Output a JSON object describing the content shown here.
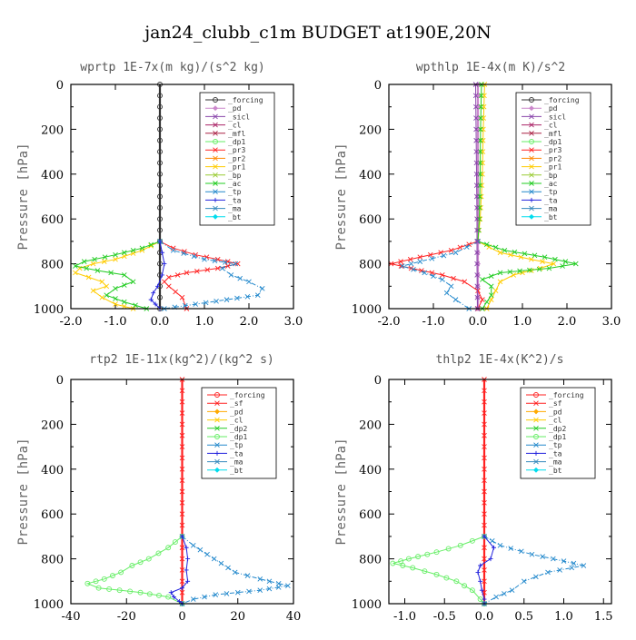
{
  "title": "jan24_clubb_c1m  BUDGET at190E,20N",
  "chart_data": [
    {
      "type": "line",
      "title": "wprtp  1E-7x(m kg)/(s^2 kg)",
      "ylabel": "Pressure [hPa]",
      "xlim": [
        -2.0,
        3.0
      ],
      "ylim": [
        1000,
        0
      ],
      "x_ticks": [
        "-2.0",
        "-1.0",
        "0.0",
        "1.0",
        "2.0",
        "3.0"
      ],
      "x_tick_values": [
        -2,
        -1,
        0,
        1,
        2,
        3
      ],
      "y_ticks": [
        "0",
        "200",
        "400",
        "600",
        "800",
        "1000"
      ],
      "legend": [
        "_forcing",
        "_pd",
        "_sicl",
        "_cl",
        "_mfl",
        "_dp1",
        "_pr3",
        "_pr2",
        "_pr1",
        "_bp",
        "_ac",
        "_tp",
        "_ta",
        "_ma",
        "_bt"
      ],
      "series": [
        {
          "name": "_forcing",
          "color": "#333333",
          "marker": "circle",
          "p": [
            0,
            100,
            200,
            300,
            400,
            500,
            600,
            700,
            800,
            900,
            1000
          ],
          "x": [
            0,
            0,
            0,
            0,
            0,
            0,
            0,
            0,
            0,
            0,
            0
          ]
        },
        {
          "name": "_pr3",
          "color": "#ff2222",
          "marker": "x",
          "p": [
            700,
            730,
            760,
            780,
            800,
            820,
            840,
            860,
            880,
            900,
            950,
            1000
          ],
          "x": [
            0,
            0.3,
            0.8,
            1.3,
            1.75,
            1.3,
            0.6,
            0.2,
            0.1,
            0.2,
            0.5,
            0.6
          ]
        },
        {
          "name": "_pr1",
          "color": "#ffcc00",
          "marker": "x",
          "p": [
            700,
            740,
            780,
            800,
            820,
            840,
            860,
            880,
            900,
            920,
            950,
            980,
            1000
          ],
          "x": [
            0,
            -0.4,
            -1.0,
            -1.5,
            -1.8,
            -1.9,
            -1.6,
            -1.3,
            -1.2,
            -1.5,
            -1.3,
            -1.0,
            -0.6
          ]
        },
        {
          "name": "_ac",
          "color": "#22cc22",
          "marker": "x",
          "p": [
            700,
            730,
            760,
            790,
            810,
            830,
            850,
            880,
            910,
            940,
            970,
            1000
          ],
          "x": [
            0,
            -0.4,
            -1.0,
            -1.7,
            -1.9,
            -1.4,
            -0.8,
            -0.6,
            -1.0,
            -1.2,
            -0.8,
            -0.3
          ]
        },
        {
          "name": "_tp",
          "color": "#2288cc",
          "marker": "x",
          "p": [
            700,
            740,
            780,
            800,
            820,
            850,
            880,
            910,
            940,
            960,
            980,
            1000
          ],
          "x": [
            0,
            0.3,
            1.0,
            1.7,
            1.4,
            1.6,
            2.0,
            2.3,
            2.2,
            1.5,
            0.8,
            0.1
          ]
        },
        {
          "name": "_ta",
          "color": "#2222dd",
          "marker": "plus",
          "p": [
            700,
            800,
            850,
            900,
            930,
            960,
            980,
            1000
          ],
          "x": [
            0,
            0.1,
            0.05,
            -0.05,
            -0.15,
            -0.2,
            -0.1,
            0
          ]
        }
      ]
    },
    {
      "type": "line",
      "title": "wpthlp  1E-4x(m K)/s^2",
      "ylabel": "Pressure [hPa]",
      "xlim": [
        -2.0,
        3.0
      ],
      "ylim": [
        1000,
        0
      ],
      "x_ticks": [
        "-2.0",
        "-1.0",
        "0.0",
        "1.0",
        "2.0",
        "3.0"
      ],
      "x_tick_values": [
        -2,
        -1,
        0,
        1,
        2,
        3
      ],
      "y_ticks": [
        "0",
        "200",
        "400",
        "600",
        "800",
        "1000"
      ],
      "legend": [
        "_forcing",
        "_pd",
        "_sicl",
        "_cl",
        "_mfl",
        "_dp1",
        "_pr3",
        "_pr2",
        "_pr1",
        "_bp",
        "_ac",
        "_tp",
        "_ta",
        "_ma",
        "_bt"
      ],
      "series": [
        {
          "name": "_pd",
          "color": "#cc88cc",
          "marker": "diamond",
          "p": [
            0,
            100,
            200,
            300,
            400,
            500,
            600,
            700,
            800,
            900,
            1000
          ],
          "x": [
            0,
            0,
            0,
            0,
            0,
            0,
            0,
            0,
            0,
            0,
            0
          ]
        },
        {
          "name": "_pr1",
          "color": "#ffcc00",
          "marker": "x",
          "p": [
            0,
            200,
            400,
            600,
            700,
            750,
            780,
            800,
            820,
            850,
            880,
            920,
            960,
            1000
          ],
          "x": [
            0.15,
            0.12,
            0.1,
            0.05,
            0,
            0.5,
            1.2,
            1.7,
            1.4,
            0.8,
            0.5,
            0.4,
            0.3,
            0.2
          ]
        },
        {
          "name": "_ac",
          "color": "#22cc22",
          "marker": "x",
          "p": [
            0,
            200,
            400,
            600,
            700,
            740,
            770,
            800,
            820,
            840,
            870,
            900,
            940,
            970,
            1000
          ],
          "x": [
            0.08,
            0.06,
            0.05,
            0.03,
            0,
            0.6,
            1.5,
            2.2,
            1.6,
            0.5,
            0.1,
            0.3,
            0.3,
            0.2,
            0.1
          ]
        },
        {
          "name": "_pr3",
          "color": "#ff2222",
          "marker": "x",
          "p": [
            700,
            740,
            770,
            800,
            820,
            850,
            880,
            920,
            960,
            1000
          ],
          "x": [
            0,
            -0.6,
            -1.3,
            -1.95,
            -1.5,
            -0.8,
            -0.3,
            0,
            0.1,
            0
          ]
        },
        {
          "name": "_tp",
          "color": "#2288cc",
          "marker": "x",
          "p": [
            700,
            750,
            790,
            810,
            840,
            870,
            900,
            930,
            960,
            1000
          ],
          "x": [
            0,
            -0.5,
            -1.3,
            -1.7,
            -1.2,
            -0.8,
            -0.6,
            -0.7,
            -0.5,
            -0.2
          ]
        },
        {
          "name": "_sicl",
          "color": "#8844aa",
          "marker": "x",
          "p": [
            0,
            200,
            400,
            600,
            800,
            1000
          ],
          "x": [
            -0.05,
            -0.04,
            -0.03,
            -0.02,
            -0.02,
            -0.01
          ]
        }
      ]
    },
    {
      "type": "line",
      "title": "rtp2  1E-11x(kg^2)/(kg^2 s)",
      "ylabel": "Pressure [hPa]",
      "xlim": [
        -40,
        40
      ],
      "ylim": [
        1000,
        0
      ],
      "x_ticks": [
        "-40",
        "-20",
        "0",
        "20",
        "40"
      ],
      "x_tick_values": [
        -40,
        -20,
        0,
        20,
        40
      ],
      "y_ticks": [
        "0",
        "200",
        "400",
        "600",
        "800",
        "1000"
      ],
      "legend": [
        "_forcing",
        "_sf",
        "_pd",
        "_cl",
        "_dp2",
        "_dp1",
        "_tp",
        "_ta",
        "_ma",
        "_bt"
      ],
      "series": [
        {
          "name": "_forcing",
          "color": "#ff2222",
          "marker": "x",
          "p": [
            0,
            100,
            200,
            300,
            400,
            500,
            600,
            700,
            800,
            900,
            1000
          ],
          "x": [
            0,
            0,
            0,
            0,
            0,
            0,
            0,
            0,
            0,
            0,
            0
          ]
        },
        {
          "name": "_dp1",
          "color": "#66ee66",
          "marker": "circle",
          "p": [
            700,
            750,
            800,
            830,
            860,
            890,
            910,
            930,
            950,
            970,
            1000
          ],
          "x": [
            0,
            -5,
            -12,
            -18,
            -22,
            -28,
            -34,
            -30,
            -15,
            -5,
            0
          ]
        },
        {
          "name": "_tp",
          "color": "#2288cc",
          "marker": "x",
          "p": [
            700,
            740,
            780,
            820,
            860,
            890,
            920,
            940,
            960,
            980,
            1000
          ],
          "x": [
            0,
            4,
            9,
            14,
            19,
            28,
            38,
            28,
            12,
            4,
            0
          ]
        },
        {
          "name": "_ta",
          "color": "#2222dd",
          "marker": "plus",
          "p": [
            700,
            750,
            800,
            850,
            900,
            930,
            950,
            970,
            990,
            1000
          ],
          "x": [
            0,
            1.5,
            2,
            1.5,
            2,
            0,
            -4,
            -3,
            -1,
            0
          ]
        }
      ]
    },
    {
      "type": "line",
      "title": "thlp2  1E-4x(K^2)/s",
      "ylabel": "Pressure [hPa]",
      "xlim": [
        -1.2,
        1.6
      ],
      "ylim": [
        1000,
        0
      ],
      "x_ticks": [
        "-1.0",
        "-0.5",
        "0.0",
        "0.5",
        "1.0",
        "1.5"
      ],
      "x_tick_values": [
        -1.0,
        -0.5,
        0.0,
        0.5,
        1.0,
        1.5
      ],
      "y_ticks": [
        "0",
        "200",
        "400",
        "600",
        "800",
        "1000"
      ],
      "legend": [
        "_forcing",
        "_sf",
        "_pd",
        "_cl",
        "_dp2",
        "_dp1",
        "_tp",
        "_ta",
        "_ma",
        "_bt"
      ],
      "series": [
        {
          "name": "_forcing",
          "color": "#ff2222",
          "marker": "x",
          "p": [
            0,
            100,
            200,
            300,
            400,
            500,
            600,
            700,
            800,
            900,
            1000
          ],
          "x": [
            0,
            0,
            0,
            0,
            0,
            0,
            0,
            0,
            0,
            0,
            0
          ]
        },
        {
          "name": "_dp1",
          "color": "#66ee66",
          "marker": "circle",
          "p": [
            700,
            740,
            770,
            800,
            820,
            840,
            870,
            900,
            940,
            980,
            1000
          ],
          "x": [
            0,
            -0.3,
            -0.6,
            -0.95,
            -1.15,
            -0.9,
            -0.6,
            -0.35,
            -0.15,
            -0.05,
            0
          ]
        },
        {
          "name": "_tp",
          "color": "#2288cc",
          "marker": "x",
          "p": [
            700,
            740,
            780,
            810,
            830,
            860,
            900,
            940,
            970,
            1000
          ],
          "x": [
            0,
            0.2,
            0.6,
            1.0,
            1.25,
            0.8,
            0.5,
            0.35,
            0.15,
            0
          ]
        },
        {
          "name": "_ta",
          "color": "#2222dd",
          "marker": "plus",
          "p": [
            700,
            750,
            800,
            830,
            860,
            900,
            940,
            980,
            1000
          ],
          "x": [
            0,
            0.12,
            0.08,
            -0.05,
            -0.08,
            -0.05,
            -0.03,
            0,
            0
          ]
        }
      ]
    }
  ]
}
